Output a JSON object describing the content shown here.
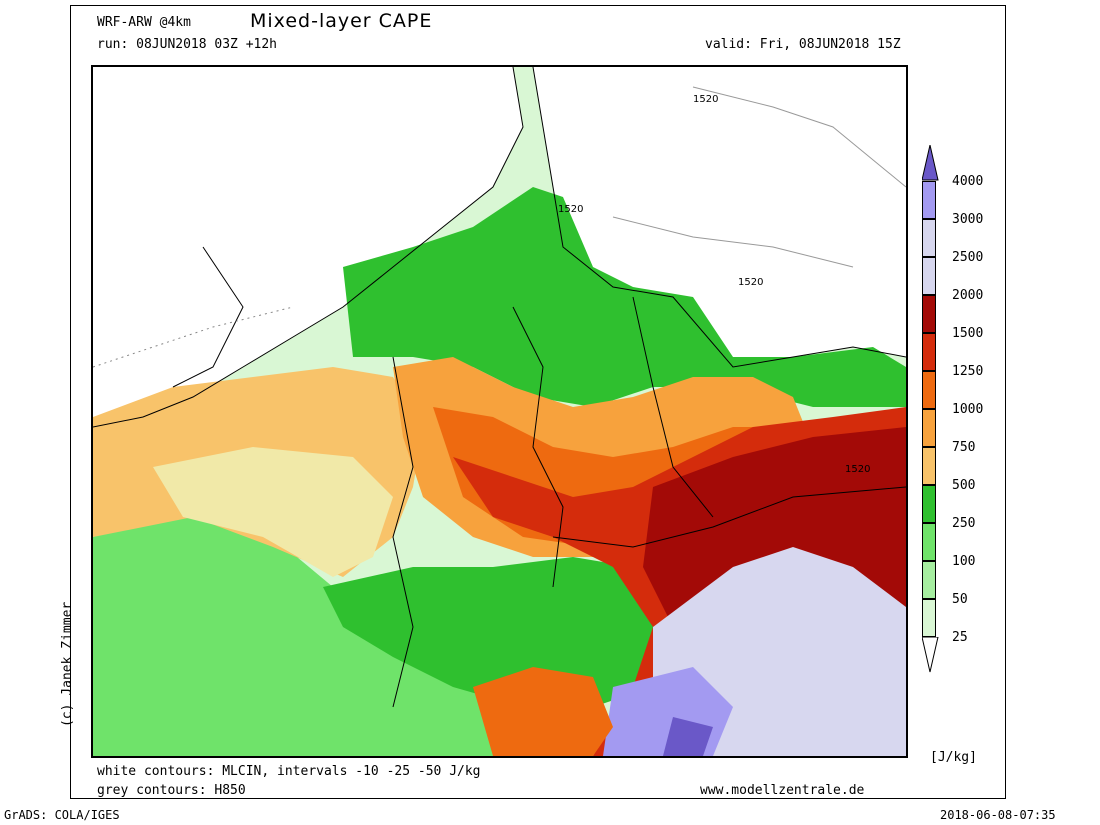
{
  "header": {
    "model": "WRF-ARW @4km",
    "title": "Mixed-layer CAPE",
    "run": "run: 08JUN2018 03Z +12h",
    "valid": "valid: Fri, 08JUN2018 15Z"
  },
  "map": {
    "contour_label": "1520",
    "colors": {
      "cape_25": "#d9f7d4",
      "cape_50": "#a6eea0",
      "cape_100": "#6fe36a",
      "cape_250": "#2fc02f",
      "cape_500": "#f1e9a8",
      "cape_750": "#f8c36a",
      "cape_1000": "#f7a23d",
      "cape_1250": "#ee6a10",
      "cape_1500": "#d42c0c",
      "cape_2000": "#a30a07",
      "cape_2500": "#d7d7ef",
      "cape_3000": "#a39af1",
      "cape_4000": "#6a58c8",
      "no_cape": "#ffffff"
    }
  },
  "legend": {
    "labels": [
      "4000",
      "3000",
      "2500",
      "2000",
      "1500",
      "1250",
      "1000",
      "750",
      "500",
      "250",
      "100",
      "50",
      "25"
    ],
    "unit": "[J/kg]"
  },
  "footer": {
    "mlcin_note": "white contours: MLCIN, intervals -10 -25 -50 J/kg",
    "grey_note": "grey contours: H850",
    "website": "www.modellzentrale.de",
    "software": "GrADS: COLA/IGES",
    "timestamp": "2018-06-08-07:35",
    "credit": "(c) Janek Zimmer"
  }
}
